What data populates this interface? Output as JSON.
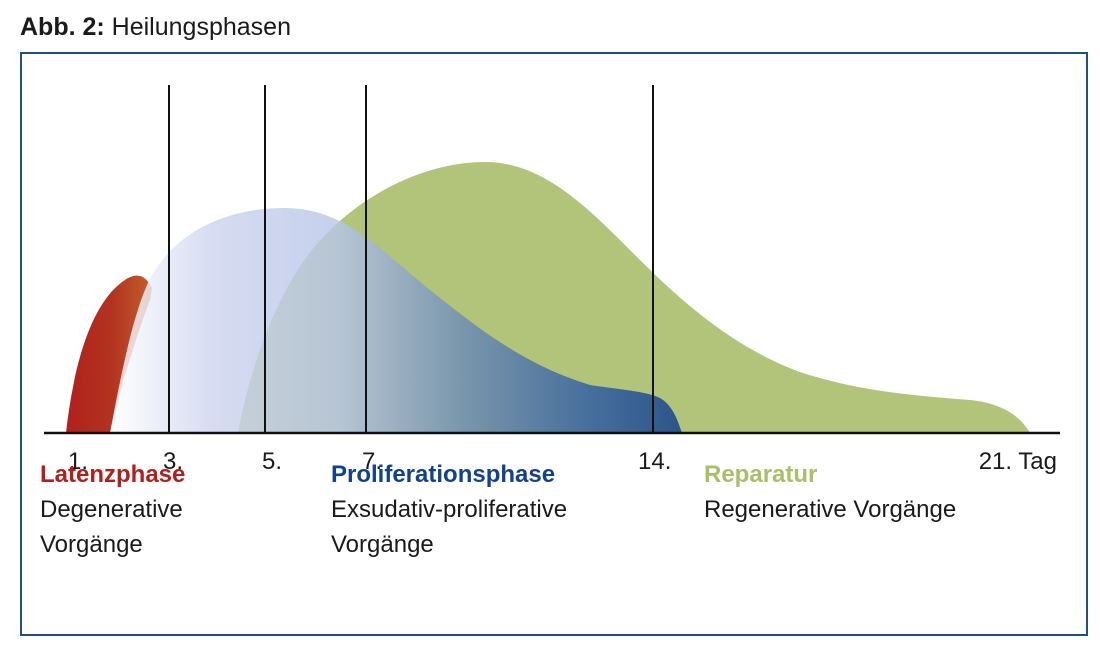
{
  "figure": {
    "caption_number": "Abb. 2:",
    "caption_title": "Heilungsphasen"
  },
  "axis": {
    "ticks": [
      "1.",
      "3.",
      "5.",
      "7.",
      "14.",
      "21. Tag"
    ]
  },
  "phases": [
    {
      "name": "Latenzphase",
      "desc_line1": "Degenerative",
      "desc_line2": "Vorgänge",
      "color": "#b0201e"
    },
    {
      "name": "Proliferationsphase",
      "desc_line1": "Exsudativ-proliferative",
      "desc_line2": "Vorgänge",
      "color": "#12428f"
    },
    {
      "name": "Reparatur",
      "desc_line1": "Regenerative Vorgänge",
      "desc_line2": "",
      "color": "#a9bf67"
    }
  ],
  "colors": {
    "frame": "#1f4f83",
    "latenz": "#b0201e",
    "proliferation": "#12428f",
    "reparatur": "#a9bf67"
  }
}
